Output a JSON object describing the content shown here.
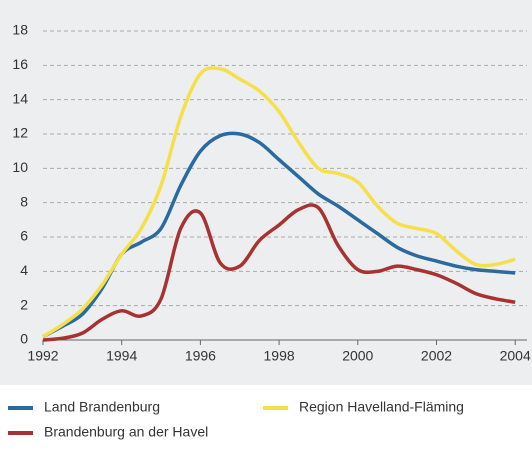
{
  "chart_data": {
    "type": "line",
    "x": [
      1992,
      1992.5,
      1993,
      1993.5,
      1994,
      1994.5,
      1995,
      1995.5,
      1996,
      1996.5,
      1997,
      1997.5,
      1998,
      1998.5,
      1999,
      1999.5,
      2000,
      2000.5,
      2001,
      2001.5,
      2002,
      2002.5,
      2003,
      2003.5,
      2004
    ],
    "series": [
      {
        "name": "Land Brandenburg",
        "color": "#2a6a9e",
        "values": [
          0.2,
          0.8,
          1.5,
          3,
          5,
          5.7,
          6.5,
          9,
          11,
          11.9,
          12,
          11.5,
          10.5,
          9.5,
          8.5,
          7.8,
          7,
          6.2,
          5.4,
          4.9,
          4.6,
          4.3,
          4.1,
          4.0,
          3.9
        ]
      },
      {
        "name": "Region Havelland-Fläming",
        "color": "#f5e04a",
        "values": [
          0.2,
          0.9,
          1.8,
          3.2,
          5,
          6.5,
          9,
          13,
          15.5,
          15.8,
          15.2,
          14.5,
          13.3,
          11.5,
          10,
          9.7,
          9.2,
          7.8,
          6.8,
          6.5,
          6.2,
          5.2,
          4.4,
          4.4,
          4.7
        ]
      },
      {
        "name": "Brandenburg an der Havel",
        "color": "#a83232",
        "values": [
          0,
          0.1,
          0.4,
          1.2,
          1.7,
          1.4,
          2.4,
          6.5,
          7.4,
          4.5,
          4.3,
          5.8,
          6.7,
          7.6,
          7.7,
          5.5,
          4.1,
          4.0,
          4.3,
          4.1,
          3.8,
          3.3,
          2.7,
          2.4,
          2.2
        ]
      }
    ],
    "xlim": [
      1992,
      2004.3
    ],
    "xticks": [
      1992,
      1994,
      1996,
      1998,
      2000,
      2002,
      2004
    ],
    "ylim": [
      0,
      18
    ],
    "yticks": [
      0,
      2,
      4,
      6,
      8,
      10,
      12,
      14,
      16,
      18
    ],
    "grid": true
  }
}
